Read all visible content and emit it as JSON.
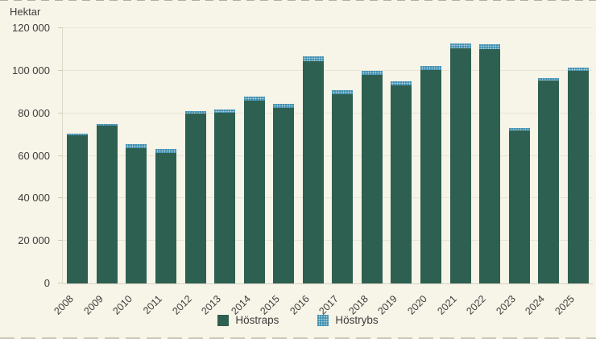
{
  "chart": {
    "y_axis_title": "Hektar"
  },
  "chart_data": {
    "type": "bar",
    "stacked": true,
    "title": "",
    "ylabel": "Hektar",
    "xlabel": "",
    "grid": true,
    "legend_position": "bottom",
    "ylim": [
      0,
      120000
    ],
    "yticks": [
      0,
      20000,
      40000,
      60000,
      80000,
      100000,
      120000
    ],
    "ytick_labels": [
      "0",
      "20 000",
      "40 000",
      "60 000",
      "80 000",
      "100 000",
      "120 000"
    ],
    "categories": [
      "2008",
      "2009",
      "2010",
      "2011",
      "2012",
      "2013",
      "2014",
      "2015",
      "2016",
      "2017",
      "2018",
      "2019",
      "2020",
      "2021",
      "2022",
      "2023",
      "2024",
      "2025"
    ],
    "series": [
      {
        "name": "Höstraps",
        "color": "#2d6050",
        "pattern": "solid",
        "values": [
          69500,
          74200,
          63600,
          61400,
          79900,
          80100,
          86000,
          82500,
          104600,
          89100,
          97900,
          93000,
          100400,
          110700,
          110200,
          72100,
          95400,
          100000
        ]
      },
      {
        "name": "Höstrybs",
        "color": "#2480a6",
        "pattern": "dotted",
        "values": [
          1100,
          700,
          1900,
          1800,
          1000,
          1800,
          2000,
          1900,
          2000,
          1900,
          2200,
          1900,
          2000,
          2300,
          2200,
          1000,
          1200,
          1300
        ]
      }
    ]
  },
  "colors": {
    "background": "#f7f4e8",
    "gridline": "#e8e5d8",
    "axis_text": "#3d3d3a",
    "hostraps_green": "#2d6050",
    "hostrybs_teal": "#2480a6"
  }
}
